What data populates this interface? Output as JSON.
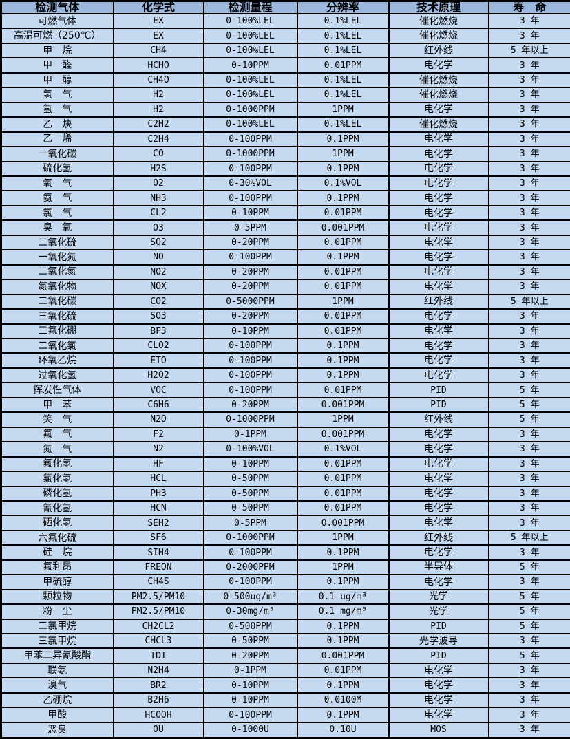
{
  "table": {
    "columns": [
      "检测气体",
      "化学式",
      "检测量程",
      "分辨率",
      "技术原理",
      "寿　命"
    ],
    "colors": {
      "header_bg": "#9cb8dc",
      "row_bg": "#c5d9f1",
      "border": "#000000",
      "text": "#000000"
    },
    "rows": [
      [
        "可燃气体",
        "EX",
        "0-100%LEL",
        "0.1%LEL",
        "催化燃烧",
        "3 年"
      ],
      [
        "高温可燃（250℃）",
        "EX",
        "0-100%LEL",
        "0.1%LEL",
        "催化燃烧",
        "3 年"
      ],
      [
        "甲　烷",
        "CH4",
        "0-100%LEL",
        "0.1%LEL",
        "红外线",
        "5 年以上"
      ],
      [
        "甲　醛",
        "HCHO",
        "0-10PPM",
        "0.01PPM",
        "电化学",
        "3 年"
      ],
      [
        "甲　醇",
        "CH4O",
        "0-100%LEL",
        "0.1%LEL",
        "催化燃烧",
        "3 年"
      ],
      [
        "氢　气",
        "H2",
        "0-100%LEL",
        "0.1%LEL",
        "催化燃烧",
        "3 年"
      ],
      [
        "氢　气",
        "H2",
        "0-1000PPM",
        "1PPM",
        "电化学",
        "3 年"
      ],
      [
        "乙　炔",
        "C2H2",
        "0-100%LEL",
        "0.1%LEL",
        "催化燃烧",
        "3 年"
      ],
      [
        "乙　烯",
        "C2H4",
        "0-100PPM",
        "0.1PPM",
        "电化学",
        "3 年"
      ],
      [
        "一氧化碳",
        "CO",
        "0-1000PPM",
        "1PPM",
        "电化学",
        "3 年"
      ],
      [
        "硫化氢",
        "H2S",
        "0-100PPM",
        "0.1PPM",
        "电化学",
        "3 年"
      ],
      [
        "氧　气",
        "O2",
        "0-30%VOL",
        "0.1%VOL",
        "电化学",
        "3 年"
      ],
      [
        "氨　气",
        "NH3",
        "0-100PPM",
        "0.1PPM",
        "电化学",
        "3 年"
      ],
      [
        "氯　气",
        "CL2",
        "0-10PPM",
        "0.01PPM",
        "电化学",
        "3 年"
      ],
      [
        "臭　氧",
        "O3",
        "0-5PPM",
        "0.001PPM",
        "电化学",
        "3 年"
      ],
      [
        "二氧化硫",
        "SO2",
        "0-20PPM",
        "0.01PPM",
        "电化学",
        "3 年"
      ],
      [
        "一氧化氮",
        "NO",
        "0-100PPM",
        "0.1PPM",
        "电化学",
        "3 年"
      ],
      [
        "二氧化氮",
        "NO2",
        "0-20PPM",
        "0.01PPM",
        "电化学",
        "3 年"
      ],
      [
        "氮氧化物",
        "NOX",
        "0-20PPM",
        "0.01PPM",
        "电化学",
        "3 年"
      ],
      [
        "二氧化碳",
        "CO2",
        "0-5000PPM",
        "1PPM",
        "红外线",
        "5 年以上"
      ],
      [
        "三氧化硫",
        "SO3",
        "0-20PPM",
        "0.01PPM",
        "电化学",
        "3 年"
      ],
      [
        "三氟化硼",
        "BF3",
        "0-10PPM",
        "0.01PPM",
        "电化学",
        "3 年"
      ],
      [
        "二氧化氯",
        "CLO2",
        "0-100PPM",
        "0.1PPM",
        "电化学",
        "3 年"
      ],
      [
        "环氧乙烷",
        "ETO",
        "0-100PPM",
        "0.1PPM",
        "电化学",
        "3 年"
      ],
      [
        "过氧化氢",
        "H2O2",
        "0-100PPM",
        "0.1PPM",
        "电化学",
        "3 年"
      ],
      [
        "挥发性气体",
        "VOC",
        "0-100PPM",
        "0.01PPM",
        "PID",
        "5 年"
      ],
      [
        "甲　苯",
        "C6H6",
        "0-20PPM",
        "0.001PPM",
        "PID",
        "5 年"
      ],
      [
        "笑　气",
        "N2O",
        "0-1000PPM",
        "1PPM",
        "红外线",
        "5 年"
      ],
      [
        "氟　气",
        "F2",
        "0-1PPM",
        "0.001PPM",
        "电化学",
        "3 年"
      ],
      [
        "氮　气",
        "N2",
        "0-100%VOL",
        "0.1%VOL",
        "电化学",
        "3 年"
      ],
      [
        "氟化氢",
        "HF",
        "0-10PPM",
        "0.01PPM",
        "电化学",
        "3 年"
      ],
      [
        "氯化氢",
        "HCL",
        "0-50PPM",
        "0.01PPM",
        "电化学",
        "3 年"
      ],
      [
        "磷化氢",
        "PH3",
        "0-50PPM",
        "0.01PPM",
        "电化学",
        "3 年"
      ],
      [
        "氰化氢",
        "HCN",
        "0-50PPM",
        "0.01PPM",
        "电化学",
        "3 年"
      ],
      [
        "硒化氢",
        "SEH2",
        "0-5PPM",
        "0.001PPM",
        "电化学",
        "3 年"
      ],
      [
        "六氟化硫",
        "SF6",
        "0-1000PPM",
        "1PPM",
        "红外线",
        "5 年以上"
      ],
      [
        "硅　烷",
        "SIH4",
        "0-100PPM",
        "0.1PPM",
        "电化学",
        "3 年"
      ],
      [
        "氟利昂",
        "FREON",
        "0-2000PPM",
        "1PPM",
        "半导体",
        "5 年"
      ],
      [
        "甲硫醇",
        "CH4S",
        "0-100PPM",
        "0.1PPM",
        "电化学",
        "3 年"
      ],
      [
        "颗粒物",
        "PM2.5/PM10",
        "0-500ug/m³",
        "0.1 ug/m³",
        "光学",
        "5 年"
      ],
      [
        "粉　尘",
        "PM2.5/PM10",
        "0-30mg/m³",
        "0.1 mg/m³",
        "光学",
        "5 年"
      ],
      [
        "二氯甲烷",
        "CH2CL2",
        "0-500PPM",
        "0.1PPM",
        "PID",
        "5 年"
      ],
      [
        "三氯甲烷",
        "CHCL3",
        "0-50PPM",
        "0.1PPM",
        "光学波导",
        "3 年"
      ],
      [
        "甲苯二异氰酸酯",
        "TDI",
        "0-20PPM",
        "0.001PPM",
        "PID",
        "5 年"
      ],
      [
        "联氨",
        "N2H4",
        "0-1PPM",
        "0.01PPM",
        "电化学",
        "3 年"
      ],
      [
        "溴气",
        "BR2",
        "0-10PPM",
        "0.1PPM",
        "电化学",
        "3 年"
      ],
      [
        "乙硼烷",
        "B2H6",
        "0-10PPM",
        "0.0100M",
        "电化学",
        "3 年"
      ],
      [
        "甲酸",
        "HCOOH",
        "0-100PPM",
        "0.1PPM",
        "电化学",
        "3 年"
      ],
      [
        "恶臭",
        "OU",
        "0-1000U",
        "0.10U",
        "MOS",
        "3 年"
      ]
    ]
  }
}
